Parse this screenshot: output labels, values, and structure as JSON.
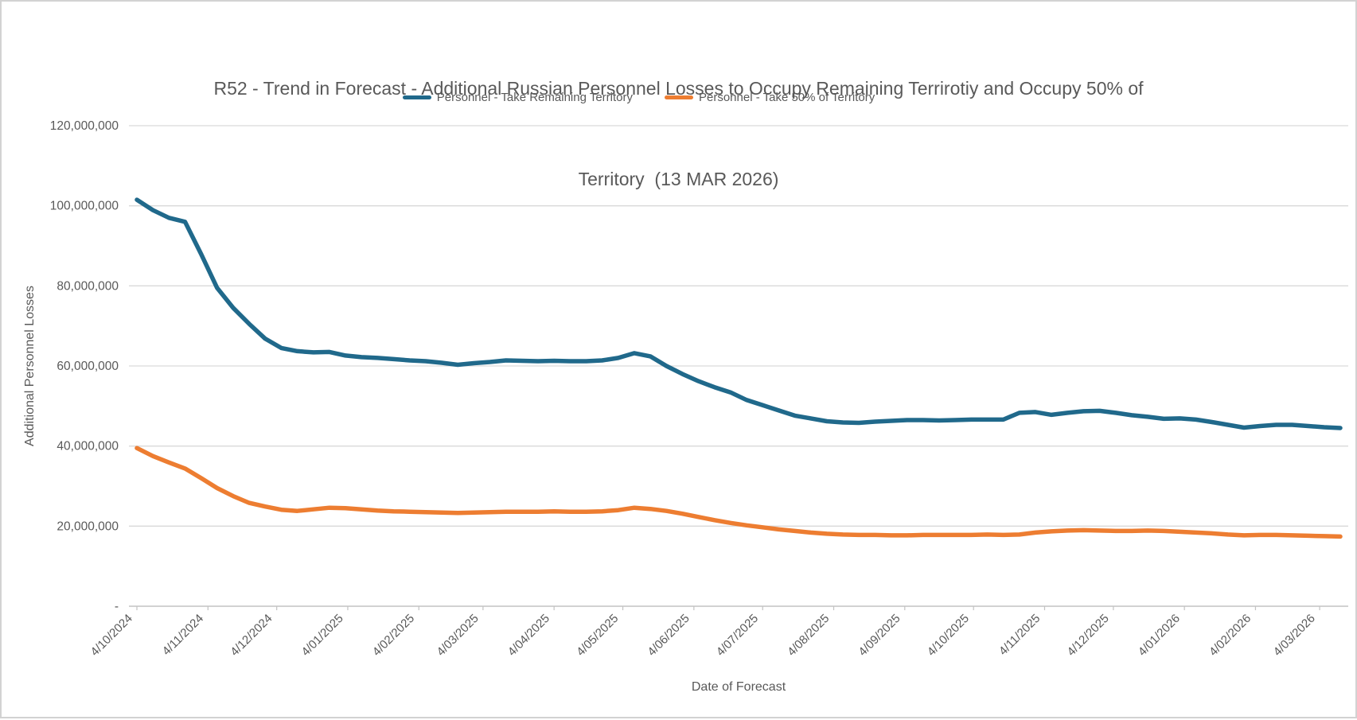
{
  "title": {
    "line1": "R52 - Trend in Forecast - Additional Russian Personnel Losses to Occupy Remaining Terrirotiy and Occupy 50% of",
    "line2": "Territory  (13 MAR 2026)"
  },
  "legend": [
    {
      "label": "Personnel - Take Remaining Territory",
      "color": "#20698B"
    },
    {
      "label": "Personnel - Take 50% of Territory",
      "color": "#ED7D31"
    }
  ],
  "axes": {
    "y_title": "Additional Personnel Losses",
    "x_title": "Date of Forecast"
  },
  "colors": {
    "gridline": "#D9D9D9",
    "axis_line": "#C3C3C3",
    "tick_text": "#595959",
    "title_text": "#595959"
  },
  "chart_data": {
    "type": "line",
    "title": "R52 - Trend in Forecast - Additional Russian Personnel Losses to Occupy Remaining Terrirotiy and Occupy 50% of Territory (13 MAR 2026)",
    "xlabel": "Date of Forecast",
    "ylabel": "Additional Personnel Losses",
    "ylim_millions": [
      0,
      120
    ],
    "grid": "horizontal",
    "legend_position": "top-center",
    "point_interval_days": 7,
    "total_days": 525,
    "x_first_date": "4/10/2024",
    "x_last_date": "13/03/2026",
    "y_ticks": [
      {
        "label": "-",
        "value_millions": 0
      },
      {
        "label": "20,000,000",
        "value_millions": 20
      },
      {
        "label": "40,000,000",
        "value_millions": 40
      },
      {
        "label": "60,000,000",
        "value_millions": 60
      },
      {
        "label": "80,000,000",
        "value_millions": 80
      },
      {
        "label": "100,000,000",
        "value_millions": 100
      },
      {
        "label": "120,000,000",
        "value_millions": 120
      }
    ],
    "x_ticks": [
      {
        "label": "4/10/2024",
        "day": 0
      },
      {
        "label": "4/11/2024",
        "day": 31
      },
      {
        "label": "4/12/2024",
        "day": 61
      },
      {
        "label": "4/01/2025",
        "day": 92
      },
      {
        "label": "4/02/2025",
        "day": 123
      },
      {
        "label": "4/03/2025",
        "day": 151
      },
      {
        "label": "4/04/2025",
        "day": 182
      },
      {
        "label": "4/05/2025",
        "day": 212
      },
      {
        "label": "4/06/2025",
        "day": 243
      },
      {
        "label": "4/07/2025",
        "day": 273
      },
      {
        "label": "4/08/2025",
        "day": 304
      },
      {
        "label": "4/09/2025",
        "day": 335
      },
      {
        "label": "4/10/2025",
        "day": 365
      },
      {
        "label": "4/11/2025",
        "day": 396
      },
      {
        "label": "4/12/2025",
        "day": 426
      },
      {
        "label": "4/01/2026",
        "day": 457
      },
      {
        "label": "4/02/2026",
        "day": 488
      },
      {
        "label": "4/03/2026",
        "day": 516
      }
    ],
    "series": [
      {
        "name": "Personnel - Take Remaining Territory",
        "color": "#20698B",
        "values_millions": [
          101.5,
          98.9,
          97.0,
          96.0,
          88.0,
          79.5,
          74.5,
          70.5,
          66.8,
          64.5,
          63.7,
          63.4,
          63.5,
          62.6,
          62.2,
          62.0,
          61.7,
          61.4,
          61.2,
          60.8,
          60.3,
          60.7,
          61.0,
          61.4,
          61.3,
          61.2,
          61.3,
          61.2,
          61.2,
          61.4,
          62.0,
          63.2,
          62.4,
          60.0,
          58.0,
          56.2,
          54.7,
          53.4,
          51.5,
          50.2,
          48.9,
          47.6,
          46.9,
          46.2,
          45.9,
          45.8,
          46.1,
          46.3,
          46.5,
          46.5,
          46.4,
          46.5,
          46.6,
          46.6,
          46.6,
          48.3,
          48.5,
          47.8,
          48.3,
          48.7,
          48.8,
          48.3,
          47.7,
          47.3,
          46.8,
          46.9,
          46.6,
          46.0,
          45.3,
          44.6,
          45.0,
          45.3,
          45.3,
          45.0,
          44.7,
          44.5
        ]
      },
      {
        "name": "Personnel - Take 50% of Territory",
        "color": "#ED7D31",
        "values_millions": [
          39.5,
          37.5,
          35.9,
          34.4,
          32.0,
          29.5,
          27.5,
          25.8,
          24.9,
          24.1,
          23.8,
          24.2,
          24.6,
          24.5,
          24.2,
          23.9,
          23.7,
          23.6,
          23.5,
          23.4,
          23.3,
          23.4,
          23.5,
          23.6,
          23.6,
          23.6,
          23.7,
          23.6,
          23.6,
          23.7,
          24.0,
          24.6,
          24.3,
          23.8,
          23.1,
          22.3,
          21.5,
          20.8,
          20.2,
          19.7,
          19.2,
          18.8,
          18.4,
          18.1,
          17.9,
          17.8,
          17.8,
          17.7,
          17.7,
          17.8,
          17.8,
          17.8,
          17.8,
          17.9,
          17.8,
          17.9,
          18.4,
          18.7,
          18.9,
          19.0,
          18.9,
          18.8,
          18.8,
          18.9,
          18.8,
          18.6,
          18.4,
          18.2,
          17.9,
          17.7,
          17.8,
          17.8,
          17.7,
          17.6,
          17.5,
          17.4
        ]
      }
    ]
  }
}
